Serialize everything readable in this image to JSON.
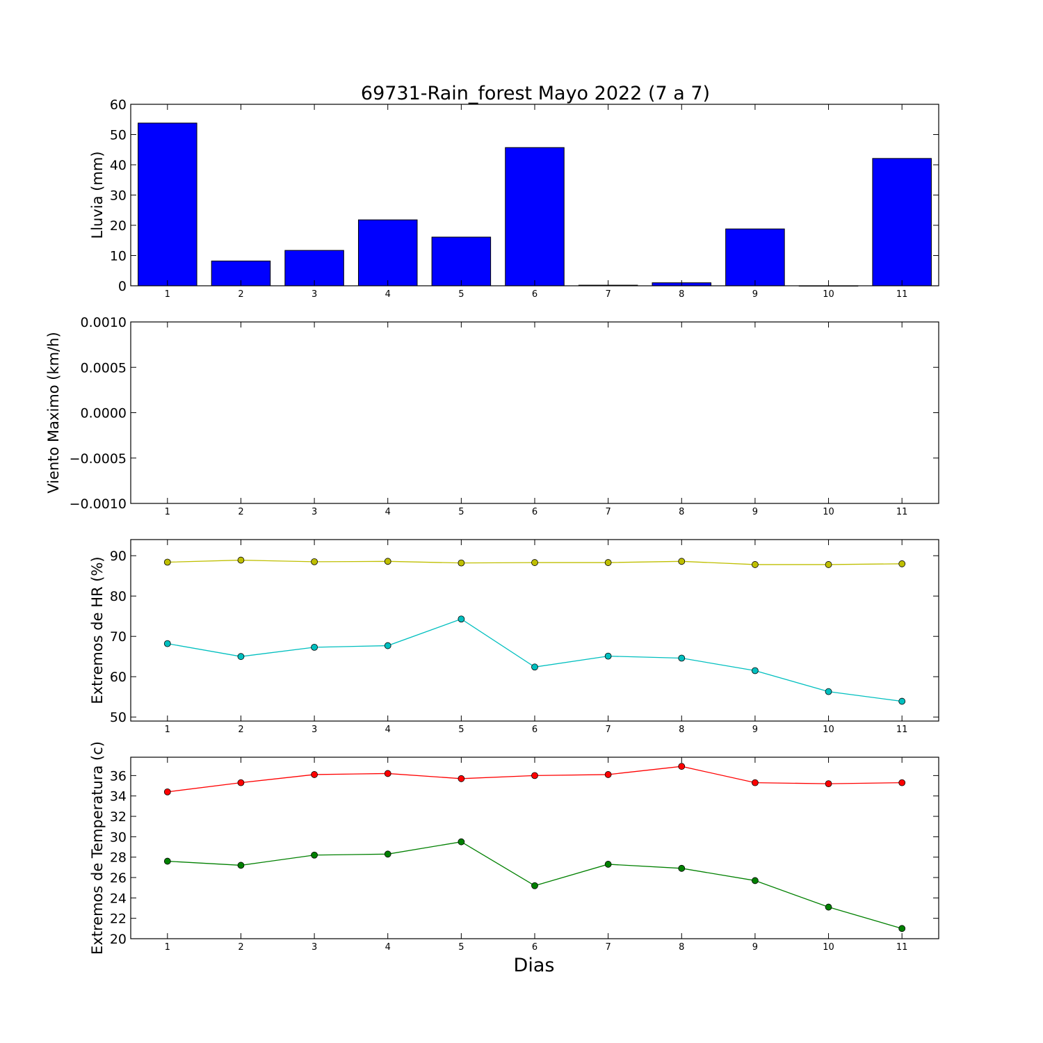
{
  "figure": {
    "title": "69731-Rain_forest Mayo 2022  (7 a 7)",
    "xlabel": "Dias"
  },
  "chart_data": [
    {
      "type": "bar",
      "ylabel": "Lluvia (mm)",
      "categories": [
        "1",
        "2",
        "3",
        "4",
        "5",
        "6",
        "7",
        "8",
        "9",
        "10",
        "11"
      ],
      "x": [
        1,
        2,
        3,
        4,
        5,
        6,
        7,
        8,
        9,
        10,
        11
      ],
      "ylim": [
        0,
        60
      ],
      "yticks": [
        0,
        10,
        20,
        30,
        40,
        50,
        60
      ],
      "ytick_labels": [
        "0",
        "10",
        "20",
        "30",
        "40",
        "50",
        "60"
      ],
      "series": [
        {
          "color": "#0000ff",
          "values": [
            53.8,
            8.2,
            11.7,
            21.8,
            16.1,
            45.7,
            0.2,
            1.0,
            18.8,
            0.0,
            42.1
          ]
        }
      ]
    },
    {
      "type": "line",
      "ylabel": "Viento Maximo (km/h)",
      "x": [
        1,
        2,
        3,
        4,
        5,
        6,
        7,
        8,
        9,
        10,
        11
      ],
      "xtick_labels": [
        "1",
        "2",
        "3",
        "4",
        "5",
        "6",
        "7",
        "8",
        "9",
        "10",
        "11"
      ],
      "ylim": [
        -0.001,
        0.001
      ],
      "yticks": [
        -0.001,
        -0.0005,
        0.0,
        0.0005,
        0.001
      ],
      "ytick_labels": [
        "−0.0010",
        "−0.0005",
        "0.0000",
        "0.0005",
        "0.0010"
      ],
      "series": []
    },
    {
      "type": "line",
      "ylabel": "Extremos de HR (%)",
      "x": [
        1,
        2,
        3,
        4,
        5,
        6,
        7,
        8,
        9,
        10,
        11
      ],
      "xtick_labels": [
        "1",
        "2",
        "3",
        "4",
        "5",
        "6",
        "7",
        "8",
        "9",
        "10",
        "11"
      ],
      "ylim": [
        49,
        94
      ],
      "yticks": [
        50,
        60,
        70,
        80,
        90
      ],
      "ytick_labels": [
        "50",
        "60",
        "70",
        "80",
        "90"
      ],
      "series": [
        {
          "color": "#bfbf00",
          "values": [
            88.4,
            88.9,
            88.5,
            88.6,
            88.2,
            88.3,
            88.3,
            88.6,
            87.8,
            87.8,
            88.0
          ]
        },
        {
          "color": "#00bfbf",
          "values": [
            68.2,
            65.0,
            67.3,
            67.7,
            74.3,
            62.4,
            65.1,
            64.6,
            61.5,
            56.3,
            53.9
          ]
        }
      ]
    },
    {
      "type": "line",
      "ylabel": "Extremos de Temperatura (c)",
      "x": [
        1,
        2,
        3,
        4,
        5,
        6,
        7,
        8,
        9,
        10,
        11
      ],
      "xtick_labels": [
        "1",
        "2",
        "3",
        "4",
        "5",
        "6",
        "7",
        "8",
        "9",
        "10",
        "11"
      ],
      "ylim": [
        20,
        37.8
      ],
      "yticks": [
        20,
        22,
        24,
        26,
        28,
        30,
        32,
        34,
        36
      ],
      "ytick_labels": [
        "20",
        "22",
        "24",
        "26",
        "28",
        "30",
        "32",
        "34",
        "36"
      ],
      "series": [
        {
          "color": "#ff0000",
          "values": [
            34.4,
            35.3,
            36.1,
            36.2,
            35.7,
            36.0,
            36.1,
            36.9,
            35.3,
            35.2,
            35.3
          ]
        },
        {
          "color": "#008000",
          "values": [
            27.6,
            27.2,
            28.2,
            28.3,
            29.5,
            25.2,
            27.3,
            26.9,
            25.7,
            23.1,
            21.0
          ]
        }
      ]
    }
  ]
}
